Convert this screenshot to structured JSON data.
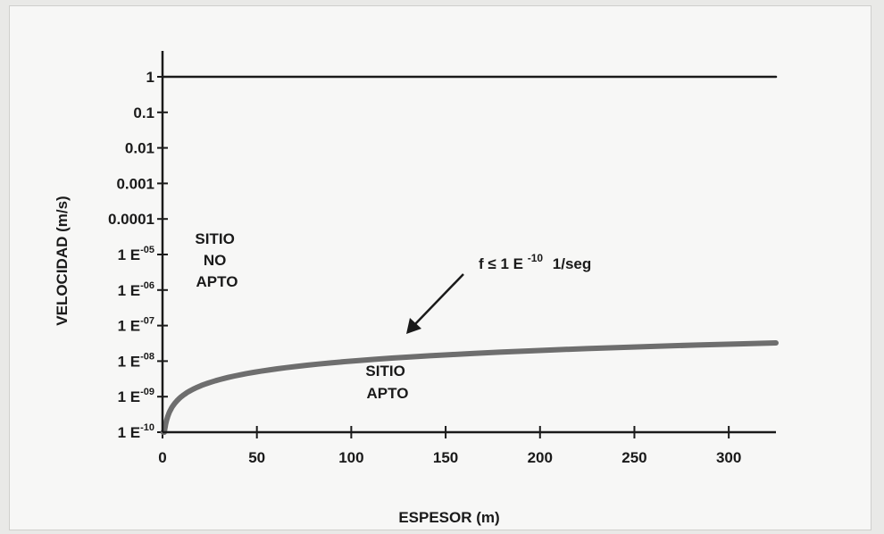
{
  "chart_data": {
    "type": "line",
    "xlabel": "ESPESOR (m)",
    "ylabel": "VELOCIDAD (m/s)",
    "xlim": [
      0,
      325
    ],
    "x_ticks": [
      0,
      50,
      100,
      150,
      200,
      250,
      300
    ],
    "x_tick_labels": [
      "0",
      "50",
      "100",
      "150",
      "200",
      "250",
      "300"
    ],
    "y_scale": "log",
    "ylim": [
      1e-10,
      1
    ],
    "y_ticks": [
      {
        "value": 1,
        "base": "1"
      },
      {
        "value": 0.1,
        "base": "0.1"
      },
      {
        "value": 0.01,
        "base": "0.01"
      },
      {
        "value": 0.001,
        "base": "0.001"
      },
      {
        "value": 0.0001,
        "base": "0.0001"
      },
      {
        "value": 1e-05,
        "base": "1 E",
        "exp": "-05"
      },
      {
        "value": 1e-06,
        "base": "1 E",
        "exp": "-06"
      },
      {
        "value": 1e-07,
        "base": "1 E",
        "exp": "-07"
      },
      {
        "value": 1e-08,
        "base": "1 E",
        "exp": "-08"
      },
      {
        "value": 1e-09,
        "base": "1 E",
        "exp": "-09"
      },
      {
        "value": 1e-10,
        "base": "1 E",
        "exp": "-10"
      }
    ],
    "series": [
      {
        "color": "#1a1a1a",
        "x": [
          0,
          325
        ],
        "y": [
          1,
          1
        ]
      },
      {
        "color": "#6e6e6e",
        "relation": "y = 1e-10 * x (velocity = f * espesor)",
        "x": [
          0.5,
          1,
          2,
          5,
          10,
          20,
          50,
          100,
          150,
          200,
          250,
          300,
          325
        ],
        "y": [
          5e-11,
          1e-10,
          2e-10,
          5e-10,
          1e-09,
          2e-09,
          5e-09,
          1e-08,
          1.5e-08,
          2e-08,
          2.5e-08,
          3e-08,
          3.25e-08
        ]
      }
    ],
    "annotations": {
      "no_apto": [
        "SITIO",
        "NO",
        "APTO"
      ],
      "apto": [
        "SITIO",
        "APTO"
      ],
      "formula": {
        "pre": "f ≤ 1 E",
        "exp": "-10",
        "post": "1/seg"
      }
    }
  }
}
